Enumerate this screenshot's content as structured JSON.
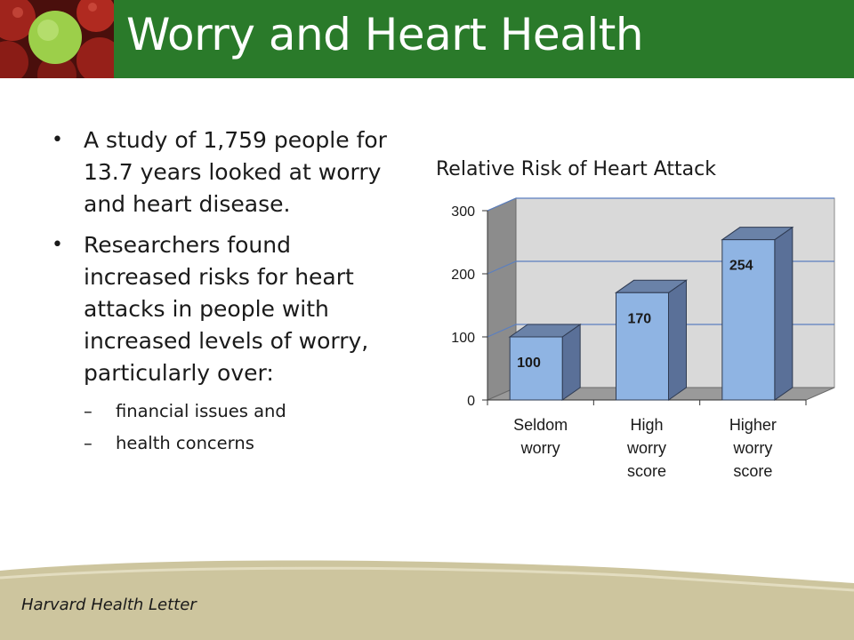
{
  "slide": {
    "title": "Worry and Heart Health",
    "source": "Harvard Health Letter"
  },
  "bullets": [
    {
      "text": "A study of 1,759 people for 13.7 years looked at worry and heart disease."
    },
    {
      "text": "Researchers found increased risks for heart attacks in people with increased levels of worry, particularly over:"
    }
  ],
  "sub_bullets": [
    {
      "text": "financial issues and"
    },
    {
      "text": "health concerns"
    }
  ],
  "colors": {
    "header_green": "#2a7a2a",
    "bar_front": "#8fb4e3",
    "bar_side": "#5a7098",
    "footer_tan": "#cdc59e"
  },
  "chart_data": {
    "type": "bar",
    "title": "Relative Risk of Heart Attack",
    "categories": [
      [
        "Seldom",
        "worry"
      ],
      [
        "High",
        "worry",
        "score"
      ],
      [
        "Higher",
        "worry",
        "score"
      ]
    ],
    "values": [
      100,
      170,
      254
    ],
    "data_labels": [
      "100",
      "170",
      "254"
    ],
    "yticks": [
      0,
      100,
      200,
      300
    ],
    "ylim": [
      0,
      300
    ],
    "grid": true,
    "three_d": true
  }
}
